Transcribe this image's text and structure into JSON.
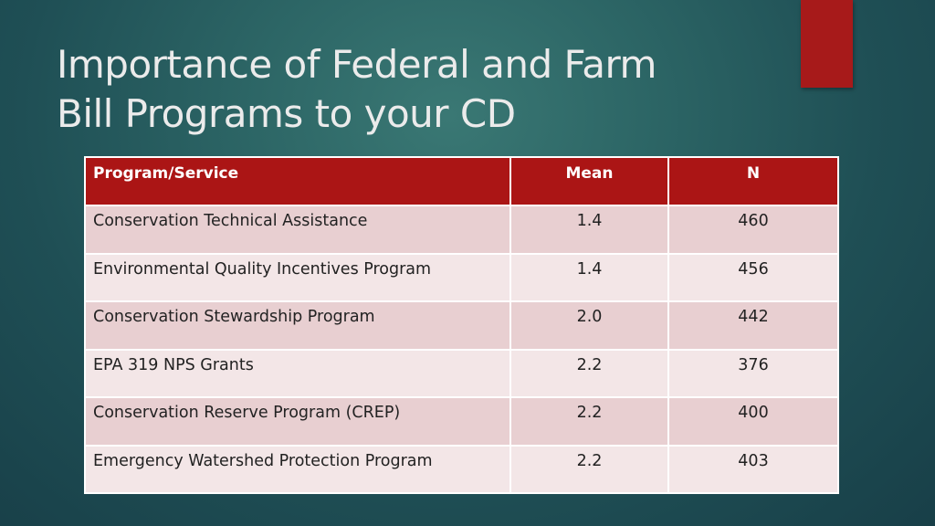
{
  "slide": {
    "title_line1": "Importance of Federal and Farm",
    "title_line2": "Bill Programs to your CD",
    "accent_color": "#a71a1a"
  },
  "table": {
    "headers": {
      "program": "Program/Service",
      "mean": "Mean",
      "n": "N"
    },
    "rows": [
      {
        "program": "Conservation Technical Assistance",
        "mean": "1.4",
        "n": "460"
      },
      {
        "program": "Environmental Quality Incentives Program",
        "mean": "1.4",
        "n": "456"
      },
      {
        "program": "Conservation Stewardship Program",
        "mean": "2.0",
        "n": "442"
      },
      {
        "program": "EPA 319 NPS Grants",
        "mean": "2.2",
        "n": "376"
      },
      {
        "program": "Conservation Reserve Program (CREP)",
        "mean": "2.2",
        "n": "400"
      },
      {
        "program": "Emergency Watershed Protection Program",
        "mean": "2.2",
        "n": "403"
      }
    ]
  }
}
